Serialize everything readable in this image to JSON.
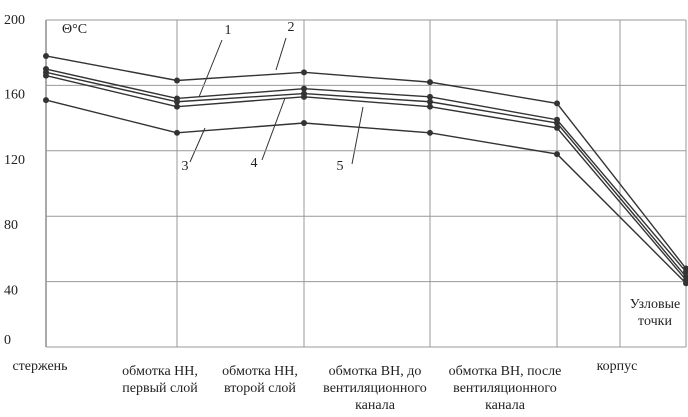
{
  "chart_data": {
    "type": "line",
    "y_label": "Θ°С",
    "annotation": "Узловые\nточки",
    "categories": [
      "стержень",
      "обмотка НН,\nпервый слой",
      "обмотка НН,\nвторой слой",
      "обмотка ВН, до\nвентиляционного\nканала",
      "обмотка ВН, после\nвентиляционного\nканала",
      "корпус"
    ],
    "series": [
      {
        "name": "2",
        "color": "#333333",
        "values": [
          178,
          163,
          168,
          162,
          149,
          48
        ]
      },
      {
        "name": "1",
        "color": "#333333",
        "values": [
          170,
          152,
          158,
          153,
          139,
          46
        ]
      },
      {
        "name": "4",
        "color": "#333333",
        "values": [
          168,
          150,
          155,
          150,
          137,
          43
        ]
      },
      {
        "name": "5",
        "color": "#333333",
        "values": [
          166,
          147,
          153,
          147,
          134,
          41
        ]
      },
      {
        "name": "3",
        "color": "#333333",
        "values": [
          151,
          131,
          137,
          131,
          118,
          39
        ]
      }
    ],
    "ylim": [
      0,
      200
    ],
    "yticks": [
      0,
      40,
      80,
      120,
      160,
      200
    ],
    "grid": true
  }
}
